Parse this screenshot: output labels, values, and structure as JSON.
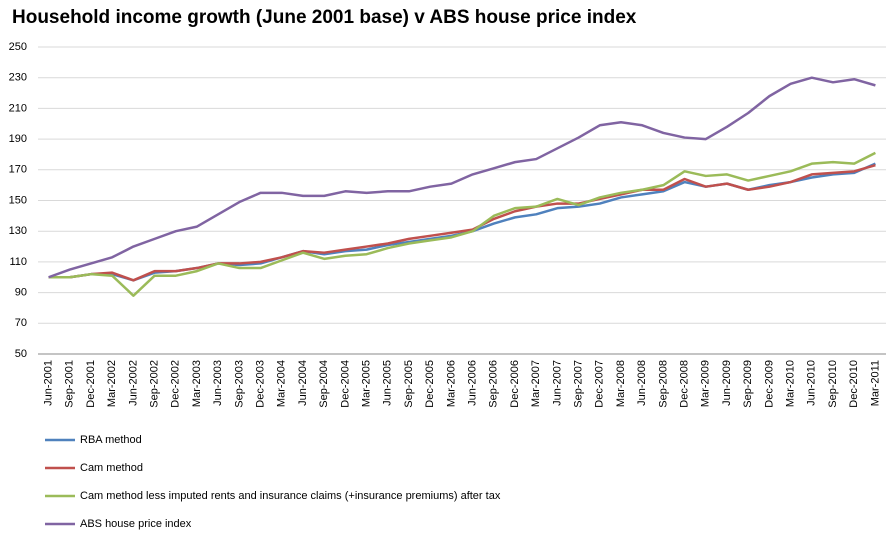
{
  "chart_data": {
    "type": "line",
    "title": "Household income growth (June 2001 base) v ABS house price index",
    "categories": [
      "Jun-2001",
      "Sep-2001",
      "Dec-2001",
      "Mar-2002",
      "Jun-2002",
      "Sep-2002",
      "Dec-2002",
      "Mar-2003",
      "Jun-2003",
      "Sep-2003",
      "Dec-2003",
      "Mar-2004",
      "Jun-2004",
      "Sep-2004",
      "Dec-2004",
      "Mar-2005",
      "Jun-2005",
      "Sep-2005",
      "Dec-2005",
      "Mar-2006",
      "Jun-2006",
      "Sep-2006",
      "Dec-2006",
      "Mar-2007",
      "Jun-2007",
      "Sep-2007",
      "Dec-2007",
      "Mar-2008",
      "Jun-2008",
      "Sep-2008",
      "Dec-2008",
      "Mar-2009",
      "Jun-2009",
      "Sep-2009",
      "Dec-2009",
      "Mar-2010",
      "Jun-2010",
      "Sep-2010",
      "Dec-2010",
      "Mar-2011"
    ],
    "series": [
      {
        "name": "RBA method",
        "color": "#4f81bd",
        "values": [
          100,
          100,
          102,
          102,
          98,
          103,
          104,
          106,
          109,
          108,
          109,
          113,
          117,
          115,
          117,
          118,
          121,
          123,
          125,
          127,
          130,
          135,
          139,
          141,
          145,
          146,
          148,
          152,
          154,
          156,
          162,
          159,
          161,
          157,
          160,
          162,
          165,
          167,
          168,
          174
        ]
      },
      {
        "name": "Cam method",
        "color": "#c0504d",
        "values": [
          100,
          100,
          102,
          103,
          98,
          104,
          104,
          106,
          109,
          109,
          110,
          113,
          117,
          116,
          118,
          120,
          122,
          125,
          127,
          129,
          131,
          138,
          143,
          146,
          148,
          148,
          151,
          154,
          157,
          157,
          164,
          159,
          161,
          157,
          159,
          162,
          167,
          168,
          169,
          173
        ]
      },
      {
        "name": "Cam method less imputed rents and insurance claims  (+insurance premiums) after tax",
        "color": "#9bbb59",
        "values": [
          100,
          100,
          102,
          101,
          88,
          101,
          101,
          104,
          109,
          106,
          106,
          111,
          116,
          112,
          114,
          115,
          119,
          122,
          124,
          126,
          130,
          140,
          145,
          146,
          151,
          147,
          152,
          155,
          157,
          160,
          169,
          166,
          167,
          163,
          166,
          169,
          174,
          175,
          174,
          181
        ]
      },
      {
        "name": "ABS house price index",
        "color": "#8064a2",
        "values": [
          100,
          105,
          109,
          113,
          120,
          125,
          130,
          133,
          141,
          149,
          155,
          155,
          153,
          153,
          156,
          155,
          156,
          156,
          159,
          161,
          167,
          171,
          175,
          177,
          184,
          191,
          199,
          201,
          199,
          194,
          191,
          190,
          198,
          207,
          218,
          226,
          230,
          227,
          229,
          225
        ]
      }
    ],
    "ylim": [
      50,
      250
    ],
    "yticks": [
      50,
      70,
      90,
      110,
      130,
      150,
      170,
      190,
      210,
      230,
      250
    ],
    "grid": true
  }
}
